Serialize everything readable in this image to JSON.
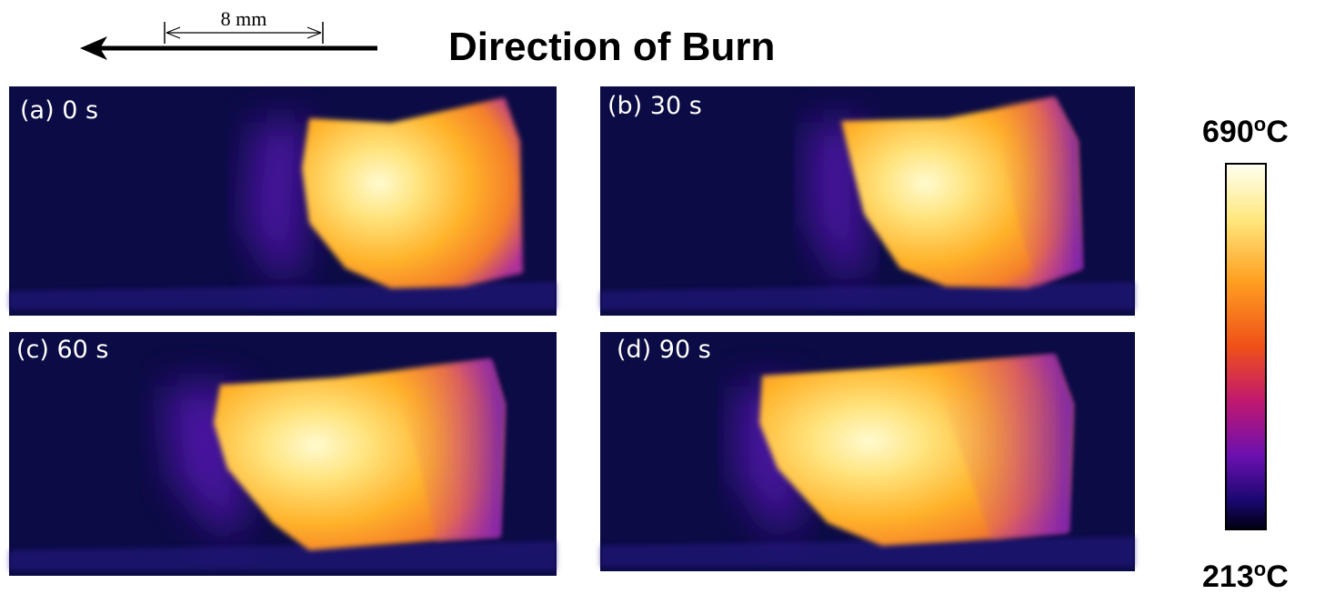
{
  "header": {
    "scale_label": "8 mm",
    "title": "Direction of Burn"
  },
  "panels": [
    {
      "label": "(a) 0 s"
    },
    {
      "label": "(b) 30 s"
    },
    {
      "label": "(c) 60 s"
    },
    {
      "label": "(d) 90 s"
    }
  ],
  "colorbar": {
    "max": {
      "number": "690",
      "degree": "o",
      "unit": "C"
    },
    "min": {
      "number": "213",
      "degree": "o",
      "unit": "C"
    }
  }
}
